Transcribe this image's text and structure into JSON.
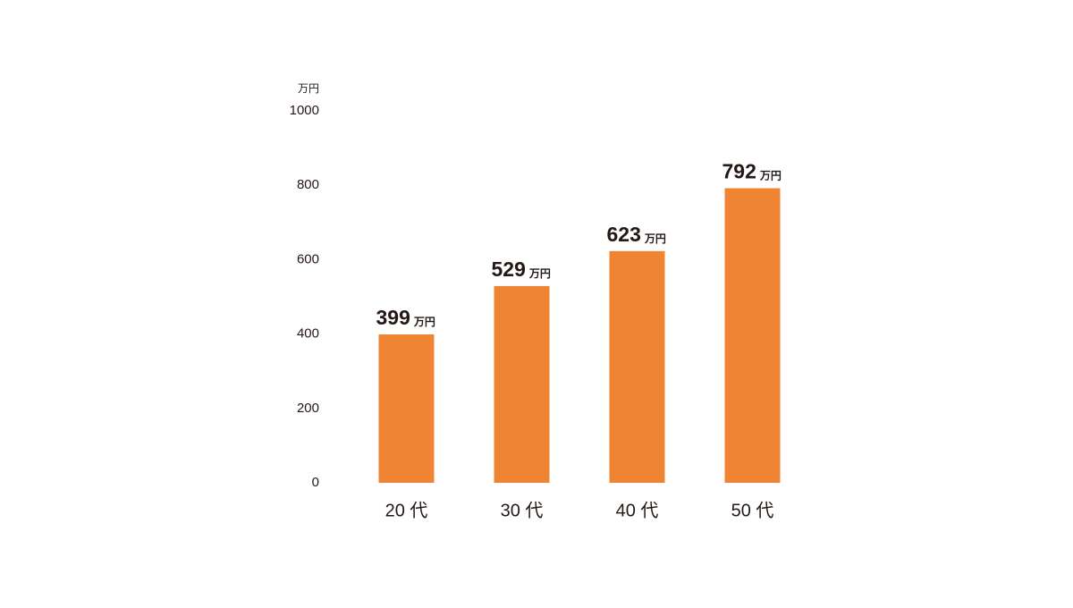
{
  "chart_data": {
    "type": "bar",
    "y_axis_unit": "万円",
    "value_unit": "万円",
    "categories": [
      "20 代",
      "30 代",
      "40 代",
      "50 代"
    ],
    "values": [
      399,
      529,
      623,
      792
    ],
    "color": "#ef8533",
    "ylim": [
      0,
      1000
    ],
    "yticks": [
      0,
      200,
      400,
      600,
      800,
      1000
    ],
    "grid": false
  }
}
